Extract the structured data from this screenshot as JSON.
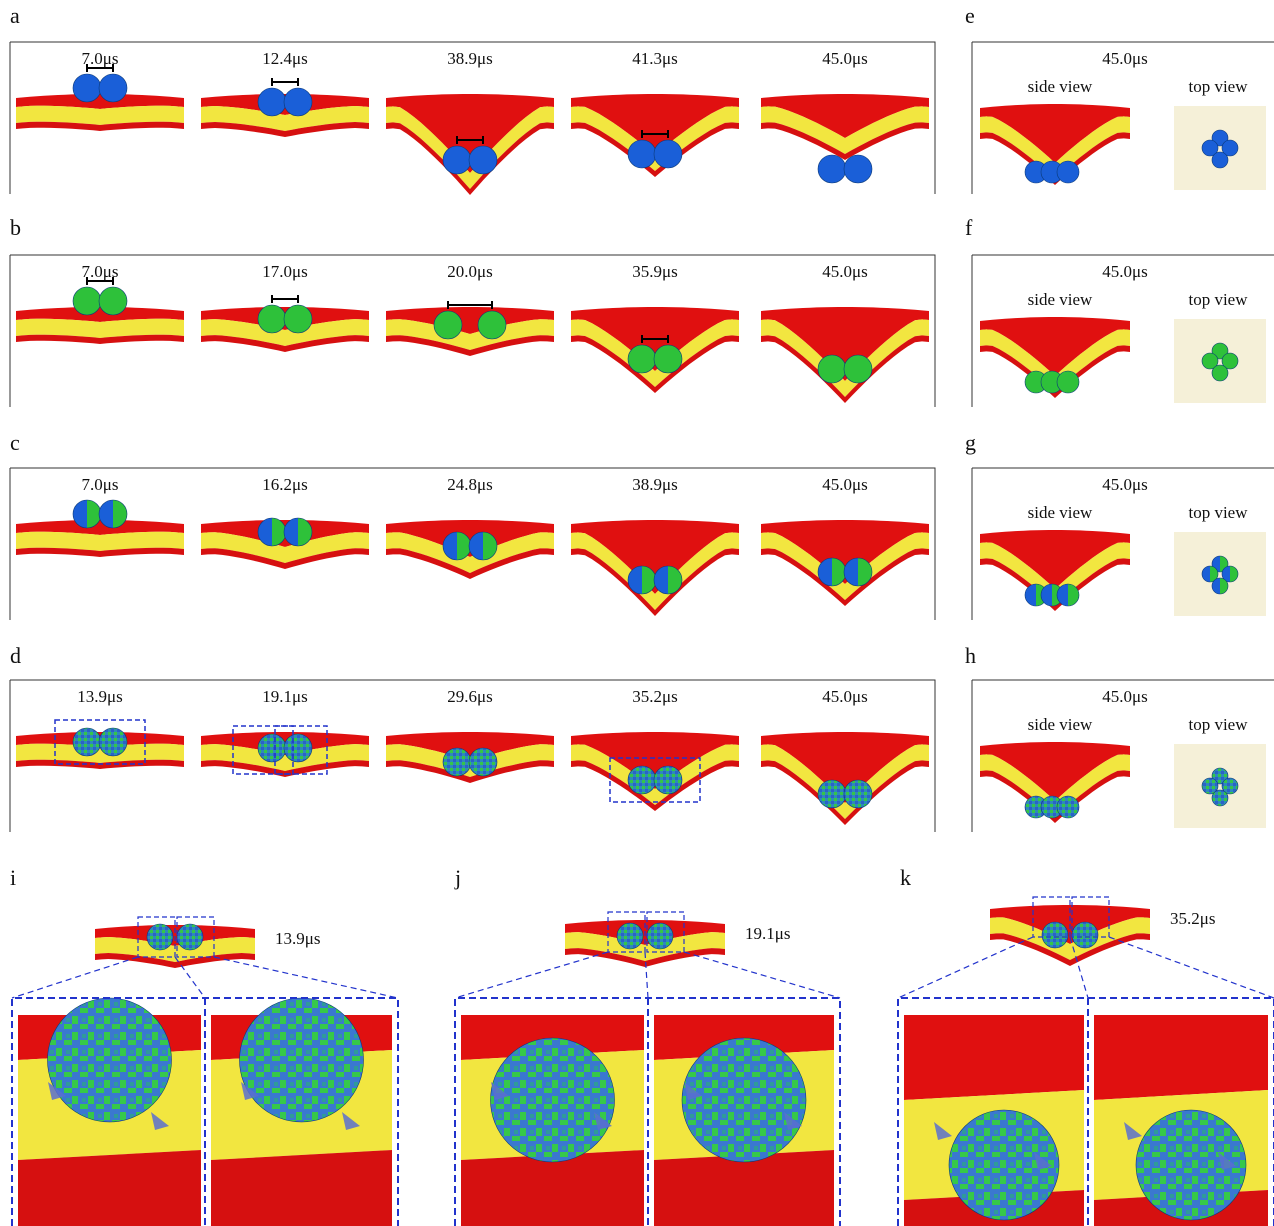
{
  "rows": [
    {
      "label": "a",
      "times": [
        "7.0μs",
        "12.4μs",
        "38.9μs",
        "41.3μs",
        "45.0μs"
      ]
    },
    {
      "label": "b",
      "times": [
        "7.0μs",
        "17.0μs",
        "20.0μs",
        "35.9μs",
        "45.0μs"
      ]
    },
    {
      "label": "c",
      "times": [
        "7.0μs",
        "16.2μs",
        "24.8μs",
        "38.9μs",
        "45.0μs"
      ]
    },
    {
      "label": "d",
      "times": [
        "13.9μs",
        "19.1μs",
        "29.6μs",
        "35.2μs",
        "45.0μs"
      ]
    }
  ],
  "side_panels": [
    {
      "label": "e",
      "time": "45.0μs",
      "side_label": "side view",
      "top_label": "top view"
    },
    {
      "label": "f",
      "time": "45.0μs",
      "side_label": "side view",
      "top_label": "top view"
    },
    {
      "label": "g",
      "time": "45.0μs",
      "side_label": "side view",
      "top_label": "top view"
    },
    {
      "label": "h",
      "time": "45.0μs",
      "side_label": "side view",
      "top_label": "top view"
    }
  ],
  "zoom_panels": [
    {
      "label": "i",
      "time": "13.9μs"
    },
    {
      "label": "j",
      "time": "19.1μs"
    },
    {
      "label": "k",
      "time": "35.2μs"
    }
  ]
}
